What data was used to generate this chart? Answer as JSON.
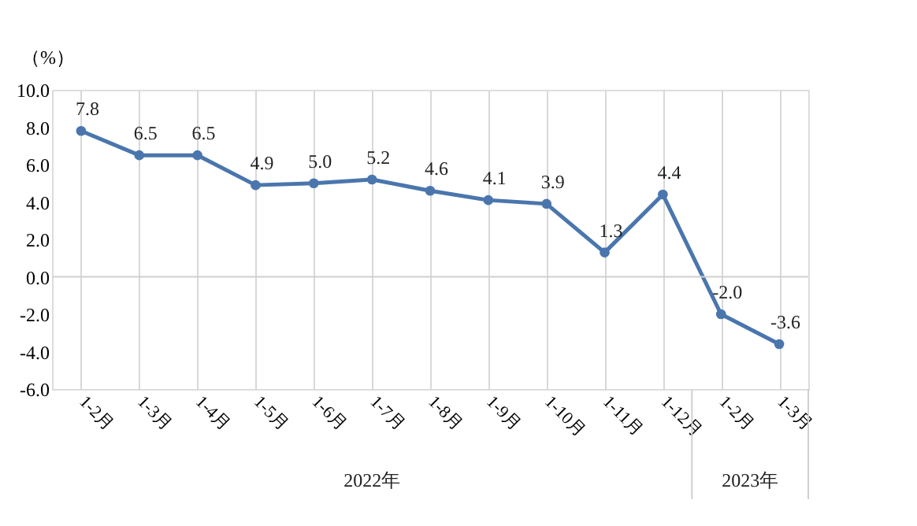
{
  "chart_data": {
    "type": "line",
    "ylabel": "（%）",
    "categories": [
      "1-2月",
      "1-3月",
      "1-4月",
      "1-5月",
      "1-6月",
      "1-7月",
      "1-8月",
      "1-9月",
      "1-10月",
      "1-11月",
      "1-12月",
      "1-2月",
      "1-3月"
    ],
    "series": [
      {
        "color": "#4a76ad",
        "values": [
          7.8,
          6.5,
          6.5,
          4.9,
          5.0,
          5.2,
          4.6,
          4.1,
          3.9,
          1.3,
          4.4,
          -2.0,
          -3.6
        ]
      }
    ],
    "ylim": [
      -6,
      10
    ],
    "yticks": [
      {
        "value": -6,
        "label": "-6.0"
      },
      {
        "value": -4,
        "label": "-4.0"
      },
      {
        "value": -2,
        "label": "-2.0"
      },
      {
        "value": 0,
        "label": "0.0"
      },
      {
        "value": 2,
        "label": "2.0"
      },
      {
        "value": 4,
        "label": "4.0"
      },
      {
        "value": 6,
        "label": "6.0"
      },
      {
        "value": 8,
        "label": "8.0"
      },
      {
        "value": 10,
        "label": "10.0"
      }
    ],
    "ref_lines": [
      {
        "axis": "y",
        "value": 0,
        "color": "#d0d0d0"
      }
    ],
    "annotations": [
      "2022年",
      "2023年"
    ],
    "value_labels": [
      "7.8",
      "6.5",
      "6.5",
      "4.9",
      "5.0",
      "5.2",
      "4.6",
      "4.1",
      "3.9",
      "1.3",
      "4.4",
      "-2.0",
      "-3.6"
    ],
    "grid": "x",
    "marker": "circle",
    "line_style": "solid"
  }
}
